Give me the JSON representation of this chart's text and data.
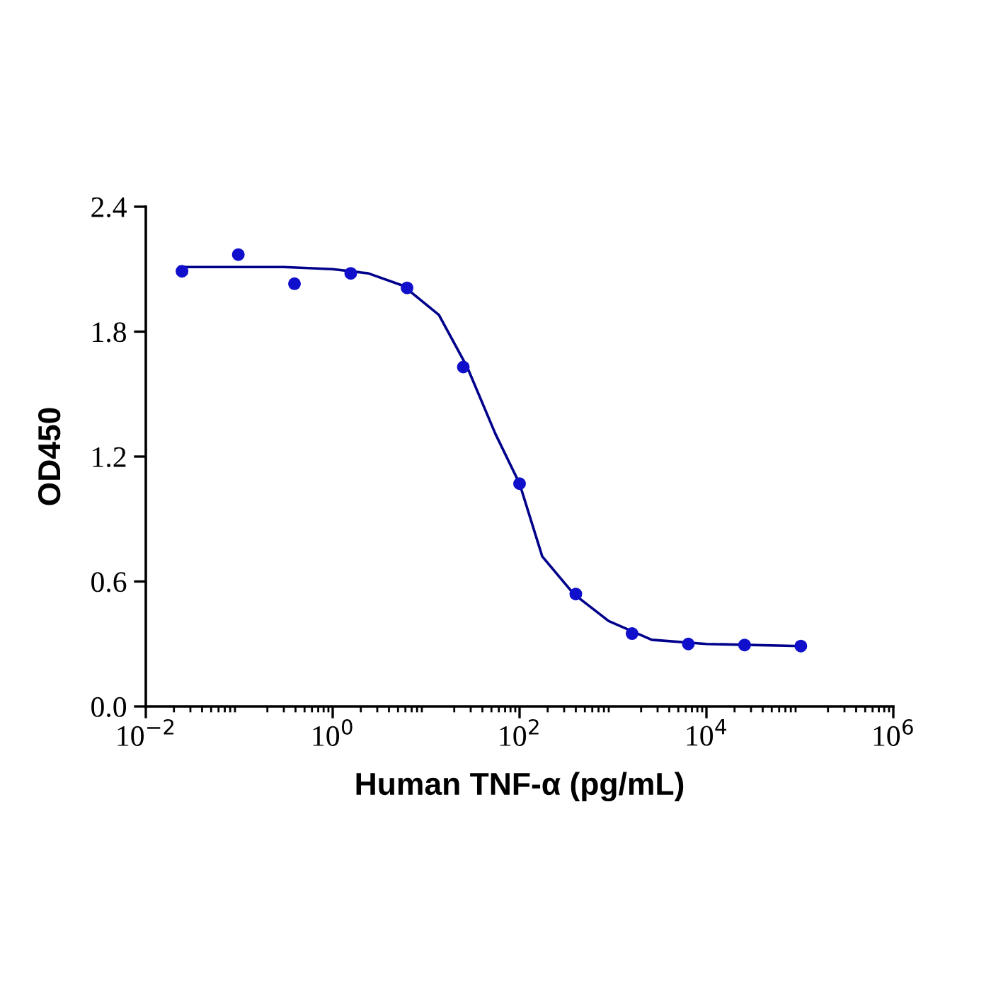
{
  "chart_data": {
    "type": "scatter",
    "xlabel": "Human TNF-α (pg/mL)",
    "ylabel": "OD450",
    "log": "x",
    "xlim": [
      0.01,
      1000000
    ],
    "xticks": [
      {
        "value": 0.01,
        "label": "10$^{−2}$"
      },
      {
        "value": 1,
        "label": "10$^{0}$"
      },
      {
        "value": 100,
        "label": "10$^{2}$"
      },
      {
        "value": 10000,
        "label": "10$^{4}$"
      },
      {
        "value": 1000000,
        "label": "10$^{6}$"
      }
    ],
    "ylim": [
      0,
      2.4
    ],
    "yticks": [
      {
        "value": 0,
        "label": "0.0"
      },
      {
        "value": 0.6,
        "label": "0.6"
      },
      {
        "value": 1.2,
        "label": "1.2"
      },
      {
        "value": 1.8,
        "label": "1.8"
      },
      {
        "value": 2.4,
        "label": "2.4"
      }
    ],
    "grid": false,
    "legend": false,
    "series": [
      {
        "marker": "circle",
        "color": "#1010cc",
        "x": [
          0.0244,
          0.0977,
          0.39,
          1.56,
          6.25,
          25,
          100,
          400,
          1600,
          6400,
          25600,
          102400
        ],
        "values": [
          2.09,
          2.17,
          2.03,
          2.08,
          2.01,
          1.63,
          1.07,
          0.54,
          0.35,
          0.3,
          0.295,
          0.29
        ]
      },
      {
        "type": "line",
        "marker": "none",
        "line_style": "solid",
        "color": "#00008b",
        "x": [
          0.0231,
          0.3,
          1,
          2.4,
          5.7,
          13.7,
          27.5,
          55,
          100,
          175,
          380,
          900,
          2600,
          10000,
          100000
        ],
        "values": [
          2.11,
          2.11,
          2.1,
          2.08,
          2.02,
          1.88,
          1.63,
          1.31,
          1.07,
          0.72,
          0.54,
          0.41,
          0.32,
          0.3,
          0.29
        ]
      }
    ]
  }
}
